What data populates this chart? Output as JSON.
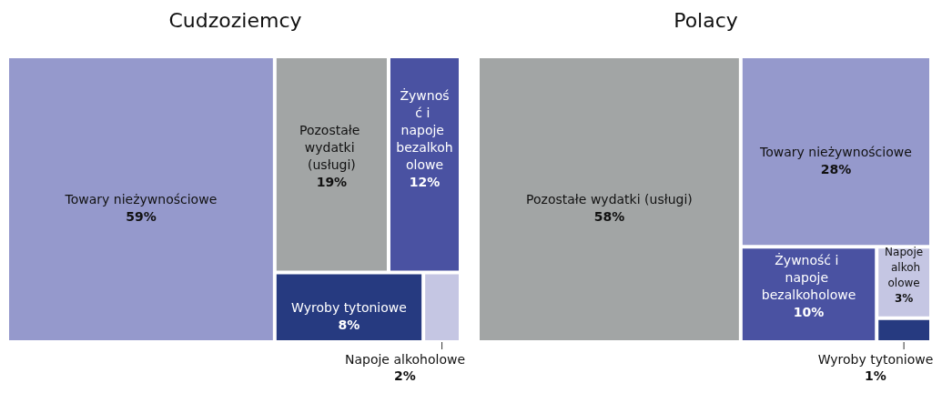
{
  "chart_data": [
    {
      "type": "other",
      "title": "Cudzoziemcy",
      "categories": [
        "Towary nieżywnościowe",
        "Pozostałe wydatki (usługi)",
        "Żywność i napoje bezalkoholowe",
        "Wyroby tytoniowe",
        "Napoje alkoholowe"
      ],
      "values": [
        59,
        19,
        12,
        8,
        2
      ],
      "value_labels": [
        "59%",
        "19%",
        "12%",
        "8%",
        "2%"
      ],
      "colors": [
        "#9599cc",
        "#a2a5a5",
        "#4a52a2",
        "#263a80",
        "#c5c6e3"
      ]
    },
    {
      "type": "other",
      "title": "Polacy",
      "categories": [
        "Pozostałe wydatki (usługi)",
        "Towary nieżywnościowe",
        "Żywność i napoje bezalkoholowe",
        "Napoje alkoholowe",
        "Wyroby tytoniowe"
      ],
      "values": [
        58,
        28,
        10,
        3,
        1
      ],
      "value_labels": [
        "58%",
        "28%",
        "10%",
        "3%",
        "1%"
      ],
      "colors": [
        "#a2a5a5",
        "#9599cc",
        "#4a52a2",
        "#c5c6e3",
        "#263a80"
      ]
    }
  ]
}
